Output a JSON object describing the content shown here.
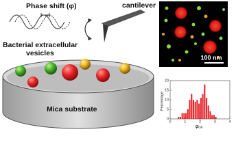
{
  "labels": {
    "phase_shift": "Phase shift (φ)",
    "cantilever": "cantilever",
    "vesicles_line1": "Bacterial extracellular",
    "vesicles_line2": "vesicles",
    "substrate": "Mica substrate",
    "scale_bar": "100 nm"
  },
  "chart_data": {
    "type": "histogram",
    "y_label": "Percentage",
    "x_label": "φ",
    "x_label_subscript": "cal",
    "color": "#e8262b",
    "bins": [
      0.5,
      0.625,
      0.75,
      0.875,
      1.0,
      1.125,
      1.25,
      1.375,
      1.5,
      1.625,
      1.75,
      1.875,
      2.0,
      2.125,
      2.25,
      2.375,
      2.5,
      2.625,
      2.75,
      2.875,
      3.0,
      3.125
    ],
    "values": [
      1,
      1,
      3,
      3,
      3,
      5,
      10,
      13,
      10,
      9,
      10,
      8,
      11,
      13,
      18,
      11,
      7,
      4,
      2,
      2,
      1
    ],
    "xlim": [
      0,
      4
    ],
    "xticks": [
      0,
      1,
      2,
      3,
      4
    ],
    "ylim": [
      0,
      20
    ],
    "yticks": [
      0,
      5,
      10,
      15,
      20
    ]
  }
}
